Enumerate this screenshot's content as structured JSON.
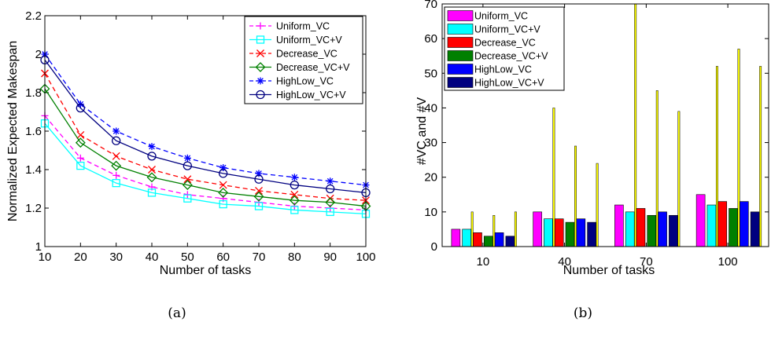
{
  "chart_data": [
    {
      "type": "line",
      "xlabel": "Number of tasks",
      "ylabel": "Normalized Expected Makespan",
      "caption": "(a)",
      "x": [
        10,
        20,
        30,
        40,
        50,
        60,
        70,
        80,
        90,
        100
      ],
      "xticks": [
        "10",
        "20",
        "30",
        "40",
        "50",
        "60",
        "70",
        "80",
        "90",
        "100"
      ],
      "yticks": [
        "1",
        "1.2",
        "1.4",
        "1.6",
        "1.8",
        "2",
        "2.2"
      ],
      "xlim": [
        10,
        100
      ],
      "ylim": [
        1,
        2.2
      ],
      "legend_position": "top-right",
      "series": [
        {
          "name": "Uniform_VC",
          "color": "#ff00ff",
          "dash": "dashed",
          "marker": "plus",
          "values": [
            1.68,
            1.46,
            1.37,
            1.31,
            1.27,
            1.25,
            1.23,
            1.21,
            1.2,
            1.19
          ]
        },
        {
          "name": "Uniform_VC+V",
          "color": "#00ffff",
          "dash": "solid",
          "marker": "square",
          "values": [
            1.64,
            1.42,
            1.33,
            1.28,
            1.25,
            1.22,
            1.21,
            1.19,
            1.18,
            1.17
          ]
        },
        {
          "name": "Decrease_VC",
          "color": "#ff0000",
          "dash": "dashed",
          "marker": "x",
          "values": [
            1.9,
            1.58,
            1.47,
            1.4,
            1.35,
            1.32,
            1.29,
            1.27,
            1.25,
            1.24
          ]
        },
        {
          "name": "Decrease_VC+V",
          "color": "#008000",
          "dash": "solid",
          "marker": "diamond",
          "values": [
            1.82,
            1.54,
            1.42,
            1.36,
            1.32,
            1.28,
            1.26,
            1.24,
            1.23,
            1.21
          ]
        },
        {
          "name": "HighLow_VC",
          "color": "#0000ff",
          "dash": "dashed",
          "marker": "star",
          "values": [
            2.0,
            1.74,
            1.6,
            1.52,
            1.46,
            1.41,
            1.38,
            1.36,
            1.34,
            1.32
          ]
        },
        {
          "name": "HighLow_VC+V",
          "color": "#000080",
          "dash": "solid",
          "marker": "circle",
          "values": [
            1.97,
            1.72,
            1.55,
            1.47,
            1.42,
            1.38,
            1.35,
            1.32,
            1.3,
            1.28
          ]
        }
      ]
    },
    {
      "type": "bar",
      "xlabel": "Number of tasks",
      "ylabel": "#VC and #V",
      "caption": "(b)",
      "categories": [
        "10",
        "40",
        "70",
        "100"
      ],
      "yticks": [
        "0",
        "10",
        "20",
        "30",
        "40",
        "50",
        "60",
        "70"
      ],
      "ylim": [
        0,
        70
      ],
      "legend_position": "top-left",
      "thin_bar_color": "#ffff00",
      "series": [
        {
          "name": "Uniform_VC",
          "color": "#ff00ff",
          "values": [
            5,
            10,
            12,
            15
          ],
          "thin_values": [
            0,
            0,
            0,
            0
          ]
        },
        {
          "name": "Uniform_VC+V",
          "color": "#00ffff",
          "values": [
            5,
            8,
            10,
            12
          ],
          "thin_values": [
            10,
            40,
            70,
            52
          ]
        },
        {
          "name": "Decrease_VC",
          "color": "#ff0000",
          "values": [
            4,
            8,
            11,
            13
          ],
          "thin_values": [
            0,
            0,
            0,
            0
          ]
        },
        {
          "name": "Decrease_VC+V",
          "color": "#008000",
          "values": [
            3,
            7,
            9,
            11
          ],
          "thin_values": [
            9,
            29,
            45,
            57
          ]
        },
        {
          "name": "HighLow_VC",
          "color": "#0000ff",
          "values": [
            4,
            8,
            10,
            13
          ],
          "thin_values": [
            0,
            0,
            0,
            0
          ]
        },
        {
          "name": "HighLow_VC+V",
          "color": "#000080",
          "values": [
            3,
            7,
            9,
            10
          ],
          "thin_values": [
            10,
            24,
            39,
            52
          ]
        }
      ]
    }
  ]
}
